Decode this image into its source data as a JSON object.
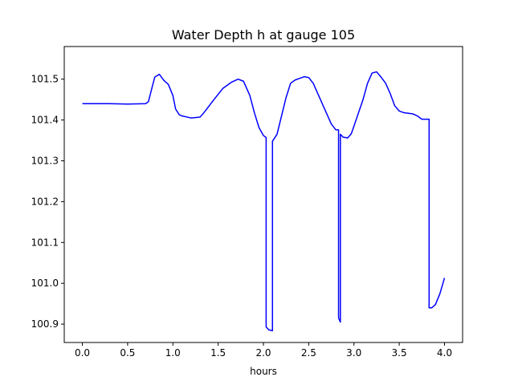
{
  "chart_data": {
    "type": "line",
    "title": "Water Depth h at gauge 105",
    "xlabel": "hours",
    "ylabel": "",
    "xlim": [
      -0.2,
      4.2
    ],
    "ylim": [
      100.855,
      101.58
    ],
    "xticks": [
      0.0,
      0.5,
      1.0,
      1.5,
      2.0,
      2.5,
      3.0,
      3.5,
      4.0
    ],
    "xtick_labels": [
      "0.0",
      "0.5",
      "1.0",
      "1.5",
      "2.0",
      "2.5",
      "3.0",
      "3.5",
      "4.0"
    ],
    "yticks": [
      100.9,
      101.0,
      101.1,
      101.2,
      101.3,
      101.4,
      101.5
    ],
    "ytick_labels": [
      "100.9",
      "101.0",
      "101.1",
      "101.2",
      "101.3",
      "101.4",
      "101.5"
    ],
    "grid": false,
    "series": [
      {
        "color": "#0000ff",
        "x": [
          0.0,
          0.3,
          0.5,
          0.7,
          0.73,
          0.77,
          0.8,
          0.85,
          0.9,
          0.95,
          1.0,
          1.03,
          1.07,
          1.1,
          1.2,
          1.3,
          1.35,
          1.45,
          1.55,
          1.65,
          1.72,
          1.78,
          1.85,
          1.9,
          1.95,
          2.0,
          2.03,
          2.03,
          2.06,
          2.1,
          2.1,
          2.15,
          2.2,
          2.25,
          2.3,
          2.35,
          2.4,
          2.45,
          2.5,
          2.55,
          2.6,
          2.65,
          2.7,
          2.75,
          2.8,
          2.83,
          2.83,
          2.85,
          2.85,
          2.88,
          2.93,
          2.97,
          3.0,
          3.1,
          3.15,
          3.2,
          3.25,
          3.3,
          3.35,
          3.4,
          3.45,
          3.5,
          3.55,
          3.65,
          3.7,
          3.75,
          3.78,
          3.83,
          3.83,
          3.86,
          3.9,
          3.95,
          4.0
        ],
        "y": [
          101.44,
          101.44,
          101.439,
          101.44,
          101.445,
          101.48,
          101.505,
          101.512,
          101.497,
          101.487,
          101.46,
          101.427,
          101.413,
          101.41,
          101.405,
          101.407,
          101.42,
          101.449,
          101.477,
          101.493,
          101.5,
          101.495,
          101.46,
          101.418,
          101.382,
          101.362,
          101.357,
          100.893,
          100.886,
          100.884,
          101.348,
          101.365,
          101.41,
          101.455,
          101.49,
          101.498,
          101.502,
          101.506,
          101.504,
          101.49,
          101.465,
          101.44,
          101.415,
          101.39,
          101.376,
          101.376,
          100.915,
          100.905,
          101.365,
          101.358,
          101.356,
          101.366,
          101.385,
          101.45,
          101.49,
          101.515,
          101.518,
          101.505,
          101.49,
          101.465,
          101.435,
          101.422,
          101.418,
          101.415,
          101.41,
          101.402,
          101.402,
          101.402,
          100.94,
          100.94,
          100.948,
          100.975,
          101.013
        ]
      }
    ]
  }
}
